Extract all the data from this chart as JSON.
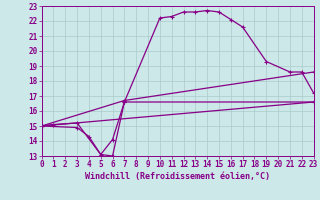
{
  "xlabel": "Windchill (Refroidissement éolien,°C)",
  "xlim": [
    0,
    23
  ],
  "ylim": [
    13,
    23
  ],
  "xticks": [
    0,
    1,
    2,
    3,
    4,
    5,
    6,
    7,
    8,
    9,
    10,
    11,
    12,
    13,
    14,
    15,
    16,
    17,
    18,
    19,
    20,
    21,
    22,
    23
  ],
  "yticks": [
    13,
    14,
    15,
    16,
    17,
    18,
    19,
    20,
    21,
    22,
    23
  ],
  "bg_color": "#cce8e8",
  "line_color": "#880088",
  "grid_color": "#aacccc",
  "curve1_x": [
    0,
    1,
    3,
    5,
    6,
    7,
    10,
    11,
    12,
    13,
    14,
    15,
    16,
    17,
    19,
    21,
    22,
    23
  ],
  "curve1_y": [
    15,
    15.1,
    15.2,
    13.1,
    13.0,
    16.6,
    22.2,
    22.3,
    22.6,
    22.6,
    22.7,
    22.6,
    22.1,
    21.6,
    19.3,
    18.6,
    18.6,
    17.2
  ],
  "curve2_x": [
    0,
    3,
    4,
    5,
    6,
    7,
    23
  ],
  "curve2_y": [
    15,
    14.9,
    14.3,
    13.1,
    14.1,
    16.6,
    16.6
  ],
  "curve3_x": [
    0,
    23
  ],
  "curve3_y": [
    15,
    16.6
  ],
  "curve4_x": [
    0,
    7,
    23
  ],
  "curve4_y": [
    15,
    16.7,
    18.6
  ],
  "tick_fontsize": 5.5,
  "xlabel_fontsize": 6
}
